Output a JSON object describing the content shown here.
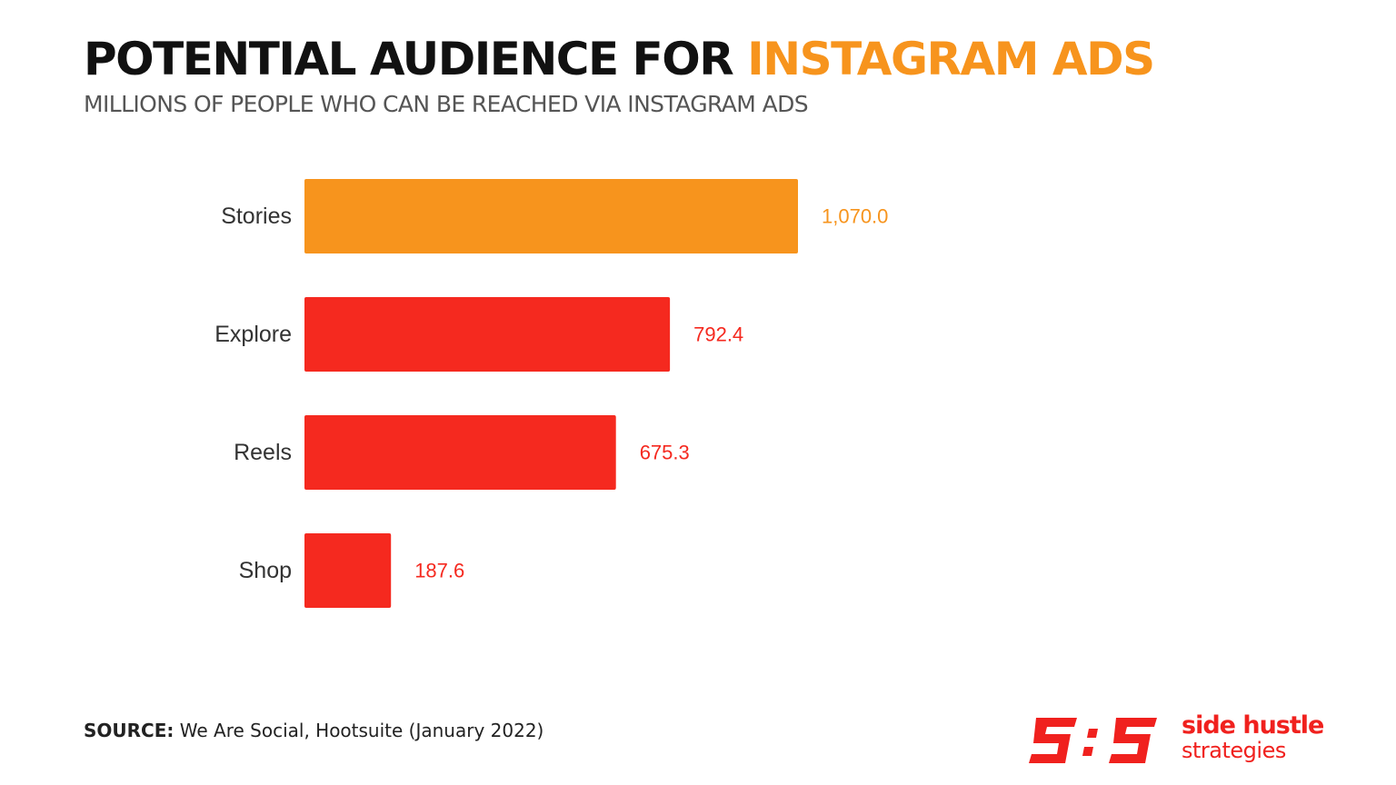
{
  "header": {
    "title_main": "POTENTIAL AUDIENCE FOR ",
    "title_accent": "INSTAGRAM ADS",
    "subtitle": "MILLIONS OF PEOPLE WHO CAN BE REACHED VIA INSTAGRAM ADS"
  },
  "colors": {
    "accent": "#f7941d",
    "bar_orange": "#f7941d",
    "bar_red": "#f5291f",
    "brand_red": "#f0211e"
  },
  "chart_data": {
    "type": "bar",
    "orientation": "horizontal",
    "categories": [
      "Stories",
      "Explore",
      "Reels",
      "Shop"
    ],
    "values": [
      1070.0,
      792.4,
      675.3,
      187.6
    ],
    "value_labels": [
      "1,070.0",
      "792.4",
      "675.3",
      "187.6"
    ],
    "bar_colors": [
      "#f7941d",
      "#f5291f",
      "#f5291f",
      "#f5291f"
    ],
    "title": "POTENTIAL AUDIENCE FOR INSTAGRAM ADS",
    "subtitle": "MILLIONS OF PEOPLE WHO CAN BE REACHED VIA INSTAGRAM ADS",
    "xlim": [
      0,
      1070
    ],
    "grid": false
  },
  "footer": {
    "source_label": "SOURCE:",
    "source_text": " We Are Social, Hootsuite (January 2022)"
  },
  "logo": {
    "line1": "side hustle",
    "line2": "strategies",
    "icon": "shs-logo-icon"
  }
}
